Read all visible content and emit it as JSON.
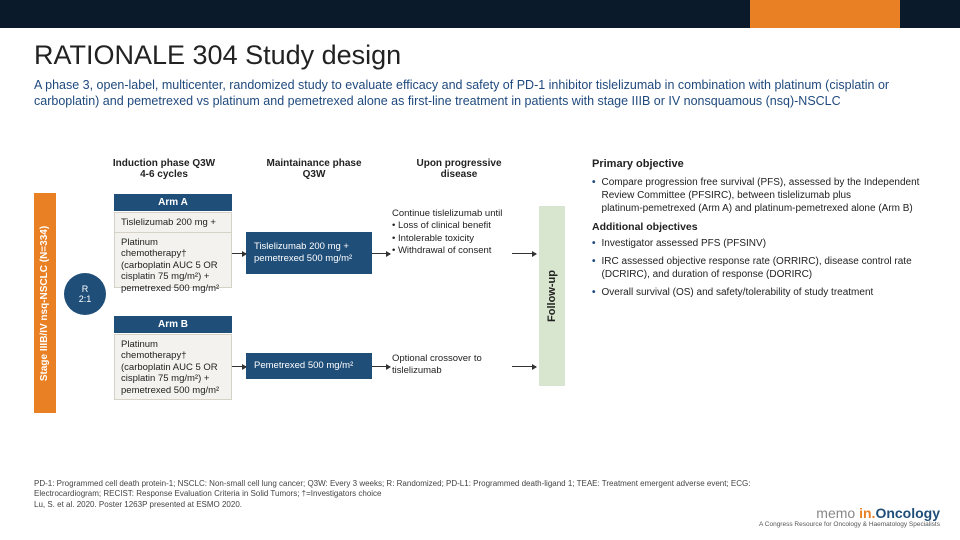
{
  "colors": {
    "top_bar": "#0a1a2a",
    "accent_orange": "#e98024",
    "accent_navy": "#1f4e79",
    "text_navy": "#1f497d",
    "box_bg": "#f4f2ee",
    "followup_bg": "#d9e6cf"
  },
  "title": "RATIONALE 304 Study design",
  "subtitle": "A phase 3, open‑label, multicenter, randomized study to evaluate efficacy and safety of PD-1 inhibitor tislelizumab in combination with platinum (cisplatin or carboplatin) and pemetrexed vs platinum and pemetrexed alone as first‑line treatment in patients with stage IIIB or IV nonsquamous (nsq)-NSCLC",
  "phase_headers": {
    "induction": "Induction phase Q3W\n4-6 cycles",
    "maintenance": "Maintainance phase\nQ3W",
    "progressive": "Upon progressive\ndisease"
  },
  "vbar_label": "Stage IIIB/IV nsq-NSCLC (N=334)",
  "randomize": {
    "top": "R",
    "ratio": "2:1"
  },
  "arm_a": {
    "header": "Arm A",
    "line1": "Tislelizumab 200 mg +",
    "line2": "Platinum chemotherapy† (carboplatin AUC 5 OR cisplatin 75 mg/m²) + pemetrexed 500 mg/m²"
  },
  "arm_b": {
    "header": "Arm B",
    "text": "Platinum chemotherapy† (carboplatin AUC 5 OR cisplatin 75 mg/m²) + pemetrexed 500 mg/m²"
  },
  "maint_a": "Tislelizumab 200 mg + pemetrexed 500 mg/m²",
  "maint_b": "Pemetrexed 500 mg/m²",
  "prog_a": "Continue tislelizumab until\n• Loss of clinical benefit\n• Intolerable toxicity\n• Withdrawal of consent",
  "prog_b": "Optional crossover to tislelizumab",
  "followup": "Follow-up",
  "objectives": {
    "primary_h": "Primary objective",
    "primary": "Compare progression free survival (PFS), assessed by the Independent Review Committee (PFSIRC), between tislelizumab plus platinum‑pemetrexed (Arm A) and platinum-pemetrexed alone (Arm B)",
    "add_h": "Additional objectives",
    "items": [
      "Investigator assessed PFS (PFSINV)",
      "IRC assessed objective response rate (ORRIRC), disease control rate (DCRIRC), and duration of response (DORIRC)",
      "Overall survival (OS) and safety/tolerability of study treatment"
    ]
  },
  "footnotes": "PD-1: Programmed cell death protein-1; NSCLC: Non-small cell lung cancer; Q3W: Every 3 weeks; R: Randomized; PD-L1: Programmed death-ligand 1; TEAE: Treatment emergent adverse event; ECG: Electrocardiogram; RECIST: Response Evaluation Criteria in Solid Tumors; †=Investigators choice\nLu, S. et al. 2020. Poster 1263P presented at ESMO 2020.",
  "logo": {
    "m": "memo ",
    "io": "in.",
    "onc": "Oncology",
    "sub": "A Congress Resource for Oncology & Haematology Specialists"
  }
}
